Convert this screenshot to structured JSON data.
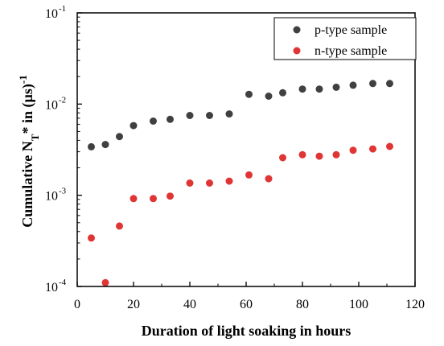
{
  "chart_data": {
    "type": "scatter",
    "xlabel": "Duration of light soaking in hours",
    "ylabel": {
      "main": "Cumulative N",
      "sub": "T",
      "rest": "* in (µs)",
      "sup": "-1"
    },
    "x_ticks": [
      "0",
      "20",
      "40",
      "60",
      "80",
      "100",
      "120"
    ],
    "y_ticks": [
      {
        "base": "10",
        "exp": "-4"
      },
      {
        "base": "10",
        "exp": "-3"
      },
      {
        "base": "10",
        "exp": "-2"
      },
      {
        "base": "10",
        "exp": "-1"
      }
    ],
    "xlim": [
      0,
      120
    ],
    "ylim": [
      0.0001,
      0.1
    ],
    "y_scale": "log",
    "legend_position": "top-right",
    "series": [
      {
        "name": "p-type sample",
        "color": "#404040",
        "x": [
          5,
          10,
          15,
          20,
          27,
          33,
          40,
          47,
          54,
          61,
          68,
          73,
          80,
          86,
          92,
          98,
          105,
          111
        ],
        "y": [
          0.0034,
          0.0036,
          0.0044,
          0.0058,
          0.0065,
          0.0068,
          0.0075,
          0.0075,
          0.0078,
          0.0128,
          0.0122,
          0.0133,
          0.0146,
          0.0146,
          0.0153,
          0.0161,
          0.0168,
          0.0168
        ]
      },
      {
        "name": "n-type sample",
        "color": "#e03535",
        "x": [
          5,
          10,
          15,
          20,
          27,
          33,
          40,
          47,
          54,
          61,
          68,
          73,
          80,
          86,
          92,
          98,
          105,
          111
        ],
        "y": [
          0.00034,
          0.00011,
          0.00046,
          0.00092,
          0.00092,
          0.00098,
          0.00136,
          0.00136,
          0.00143,
          0.00167,
          0.00152,
          0.00258,
          0.00278,
          0.00268,
          0.00278,
          0.00312,
          0.00322,
          0.00343
        ]
      }
    ]
  }
}
